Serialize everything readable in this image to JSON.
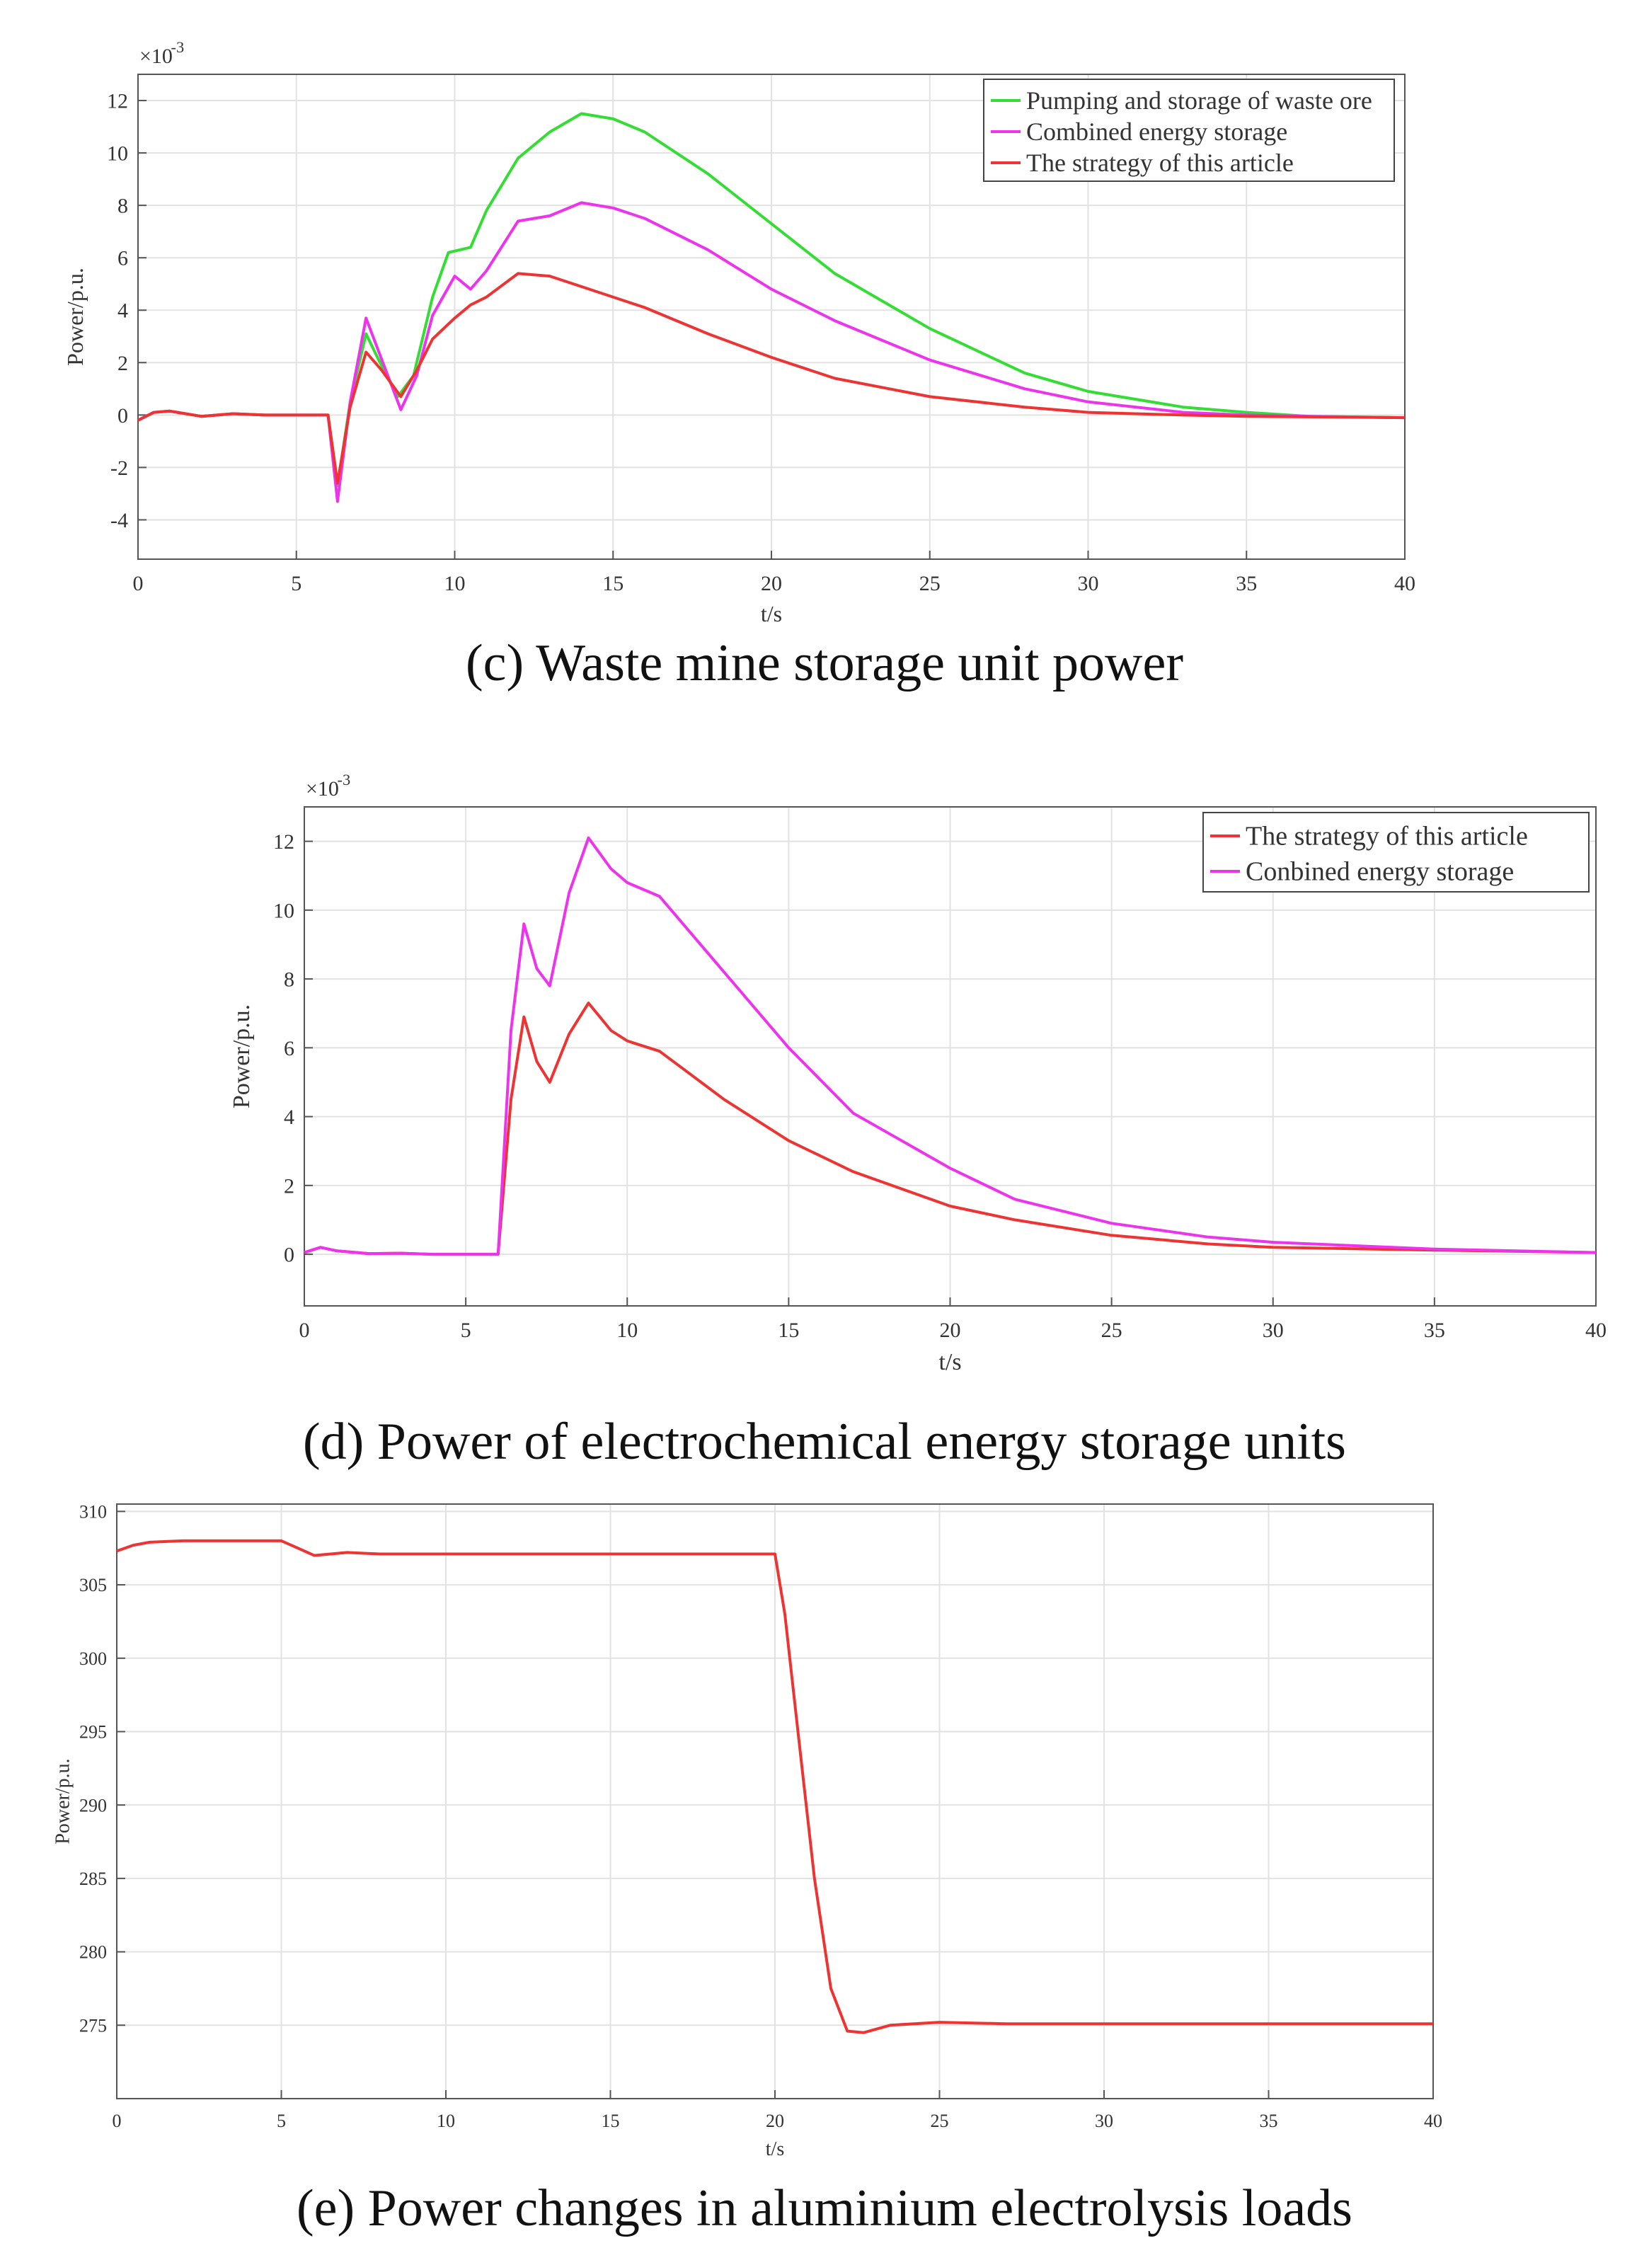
{
  "chart_data": [
    {
      "type": "line",
      "caption": "(c) Waste mine storage unit power",
      "xlabel": "t/s",
      "ylabel": "Power/p.u.",
      "exponent_label": "×10",
      "exponent_power": "-3",
      "xlim": [
        0,
        40
      ],
      "ylim": [
        -5.5,
        13
      ],
      "xticks": [
        0,
        5,
        10,
        15,
        20,
        25,
        30,
        35,
        40
      ],
      "yticks": [
        -4,
        -2,
        0,
        2,
        4,
        6,
        8,
        10,
        12
      ],
      "grid": true,
      "legend_position": "top-right",
      "colors": {
        "green": "#33dd33",
        "magenta": "#ee33ee",
        "red": "#ee3333"
      },
      "series": [
        {
          "name": "Pumping and storage of waste ore",
          "color": "#33dd33",
          "points": [
            [
              0,
              -0.2
            ],
            [
              0.5,
              0.1
            ],
            [
              1,
              0.15
            ],
            [
              2,
              -0.05
            ],
            [
              3,
              0.05
            ],
            [
              4,
              0
            ],
            [
              5,
              0
            ],
            [
              6,
              0
            ],
            [
              6.3,
              -2.7
            ],
            [
              6.7,
              0.5
            ],
            [
              7.2,
              3.1
            ],
            [
              7.6,
              2.1
            ],
            [
              8.2,
              0.7
            ],
            [
              8.7,
              1.5
            ],
            [
              9.3,
              4.5
            ],
            [
              9.8,
              6.2
            ],
            [
              10.5,
              6.4
            ],
            [
              11,
              7.8
            ],
            [
              12,
              9.8
            ],
            [
              13,
              10.8
            ],
            [
              14,
              11.5
            ],
            [
              15,
              11.3
            ],
            [
              16,
              10.8
            ],
            [
              18,
              9.2
            ],
            [
              20,
              7.3
            ],
            [
              22,
              5.4
            ],
            [
              25,
              3.3
            ],
            [
              28,
              1.6
            ],
            [
              30,
              0.9
            ],
            [
              33,
              0.3
            ],
            [
              35,
              0.1
            ],
            [
              37,
              -0.05
            ],
            [
              40,
              -0.1
            ]
          ]
        },
        {
          "name": "Combined energy storage",
          "color": "#ee33ee",
          "points": [
            [
              0,
              -0.2
            ],
            [
              0.5,
              0.1
            ],
            [
              1,
              0.15
            ],
            [
              2,
              -0.05
            ],
            [
              3,
              0.05
            ],
            [
              4,
              0
            ],
            [
              5,
              0
            ],
            [
              6,
              0
            ],
            [
              6.3,
              -3.3
            ],
            [
              6.7,
              0.5
            ],
            [
              7.2,
              3.7
            ],
            [
              7.7,
              2.1
            ],
            [
              8.3,
              0.2
            ],
            [
              8.8,
              1.5
            ],
            [
              9.3,
              3.8
            ],
            [
              10,
              5.3
            ],
            [
              10.5,
              4.8
            ],
            [
              11,
              5.5
            ],
            [
              12,
              7.4
            ],
            [
              13,
              7.6
            ],
            [
              14,
              8.1
            ],
            [
              15,
              7.9
            ],
            [
              16,
              7.5
            ],
            [
              18,
              6.3
            ],
            [
              20,
              4.8
            ],
            [
              22,
              3.6
            ],
            [
              25,
              2.1
            ],
            [
              28,
              1.0
            ],
            [
              30,
              0.5
            ],
            [
              33,
              0.1
            ],
            [
              35,
              0.0
            ],
            [
              37,
              -0.05
            ],
            [
              40,
              -0.1
            ]
          ]
        },
        {
          "name": "The strategy of this article",
          "color": "#ee3333",
          "points": [
            [
              0,
              -0.2
            ],
            [
              0.5,
              0.1
            ],
            [
              1,
              0.15
            ],
            [
              2,
              -0.05
            ],
            [
              3,
              0.05
            ],
            [
              4,
              0
            ],
            [
              5,
              0
            ],
            [
              6,
              0
            ],
            [
              6.3,
              -2.6
            ],
            [
              6.7,
              0.3
            ],
            [
              7.2,
              2.4
            ],
            [
              7.7,
              1.7
            ],
            [
              8.3,
              0.7
            ],
            [
              8.8,
              1.7
            ],
            [
              9.3,
              2.9
            ],
            [
              10,
              3.7
            ],
            [
              10.5,
              4.2
            ],
            [
              11,
              4.5
            ],
            [
              12,
              5.4
            ],
            [
              13,
              5.3
            ],
            [
              14,
              4.9
            ],
            [
              16,
              4.1
            ],
            [
              18,
              3.1
            ],
            [
              20,
              2.2
            ],
            [
              22,
              1.4
            ],
            [
              25,
              0.7
            ],
            [
              28,
              0.3
            ],
            [
              30,
              0.1
            ],
            [
              33,
              0.0
            ],
            [
              35,
              -0.05
            ],
            [
              40,
              -0.1
            ]
          ]
        }
      ]
    },
    {
      "type": "line",
      "caption": "(d) Power of electrochemical energy storage units",
      "xlabel": "t/s",
      "ylabel": "Power/p.u.",
      "exponent_label": "×10",
      "exponent_power": "-3",
      "xlim": [
        0,
        40
      ],
      "ylim": [
        -1.5,
        13
      ],
      "xticks": [
        0,
        5,
        10,
        15,
        20,
        25,
        30,
        35,
        40
      ],
      "yticks": [
        0,
        2,
        4,
        6,
        8,
        10,
        12
      ],
      "grid": true,
      "legend_position": "top-right",
      "series": [
        {
          "name": "The strategy of this article",
          "color": "#ee3333",
          "points": [
            [
              0,
              0.05
            ],
            [
              0.5,
              0.2
            ],
            [
              1,
              0.1
            ],
            [
              2,
              0.02
            ],
            [
              3,
              0.03
            ],
            [
              4,
              0
            ],
            [
              5,
              0
            ],
            [
              6,
              0
            ],
            [
              6.4,
              4.5
            ],
            [
              6.8,
              6.9
            ],
            [
              7.2,
              5.6
            ],
            [
              7.6,
              5.0
            ],
            [
              8.2,
              6.4
            ],
            [
              8.8,
              7.3
            ],
            [
              9.5,
              6.5
            ],
            [
              10,
              6.2
            ],
            [
              11,
              5.9
            ],
            [
              12,
              5.2
            ],
            [
              13,
              4.5
            ],
            [
              15,
              3.3
            ],
            [
              17,
              2.4
            ],
            [
              20,
              1.4
            ],
            [
              22,
              1.0
            ],
            [
              25,
              0.55
            ],
            [
              28,
              0.3
            ],
            [
              30,
              0.2
            ],
            [
              35,
              0.12
            ],
            [
              40,
              0.05
            ]
          ]
        },
        {
          "name": "Conbined energy storage",
          "color": "#ee33ee",
          "points": [
            [
              0,
              0.05
            ],
            [
              0.5,
              0.2
            ],
            [
              1,
              0.1
            ],
            [
              2,
              0.02
            ],
            [
              3,
              0.03
            ],
            [
              4,
              0
            ],
            [
              5,
              0
            ],
            [
              6,
              0
            ],
            [
              6.4,
              6.5
            ],
            [
              6.8,
              9.6
            ],
            [
              7.2,
              8.3
            ],
            [
              7.6,
              7.8
            ],
            [
              8.2,
              10.5
            ],
            [
              8.8,
              12.1
            ],
            [
              9.5,
              11.2
            ],
            [
              10,
              10.8
            ],
            [
              11,
              10.4
            ],
            [
              12,
              9.3
            ],
            [
              13,
              8.2
            ],
            [
              15,
              6.0
            ],
            [
              17,
              4.1
            ],
            [
              20,
              2.5
            ],
            [
              22,
              1.6
            ],
            [
              25,
              0.9
            ],
            [
              28,
              0.5
            ],
            [
              30,
              0.35
            ],
            [
              35,
              0.15
            ],
            [
              40,
              0.05
            ]
          ]
        }
      ]
    },
    {
      "type": "line",
      "caption": "(e) Power changes in aluminium electrolysis loads",
      "xlabel": "t/s",
      "ylabel": "Power/p.u.",
      "xlim": [
        0,
        40
      ],
      "ylim": [
        270,
        310.5
      ],
      "xticks": [
        0,
        5,
        10,
        15,
        20,
        25,
        30,
        35,
        40
      ],
      "yticks": [
        275,
        280,
        285,
        290,
        295,
        300,
        305,
        310
      ],
      "grid": true,
      "series": [
        {
          "name": "",
          "color": "#ee3333",
          "points": [
            [
              0,
              307.3
            ],
            [
              0.5,
              307.7
            ],
            [
              1,
              307.9
            ],
            [
              2,
              308.0
            ],
            [
              5,
              308.0
            ],
            [
              5.5,
              307.5
            ],
            [
              6,
              307.0
            ],
            [
              7,
              307.2
            ],
            [
              8,
              307.1
            ],
            [
              10,
              307.1
            ],
            [
              15,
              307.1
            ],
            [
              19,
              307.1
            ],
            [
              20,
              307.1
            ],
            [
              20.3,
              303
            ],
            [
              20.7,
              295
            ],
            [
              21.2,
              285
            ],
            [
              21.7,
              277.5
            ],
            [
              22.2,
              274.6
            ],
            [
              22.7,
              274.5
            ],
            [
              23.5,
              275.0
            ],
            [
              25,
              275.2
            ],
            [
              27,
              275.1
            ],
            [
              30,
              275.1
            ],
            [
              35,
              275.1
            ],
            [
              40,
              275.1
            ]
          ]
        }
      ]
    }
  ]
}
